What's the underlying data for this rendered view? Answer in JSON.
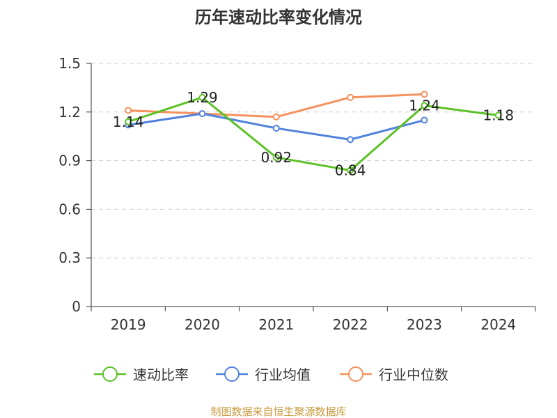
{
  "chart_data": {
    "type": "line",
    "title": "历年速动比率变化情况",
    "categories": [
      "2019",
      "2020",
      "2021",
      "2022",
      "2023",
      "2024"
    ],
    "y_ticks": [
      "0",
      "0.3",
      "0.6",
      "0.9",
      "1.2",
      "1.5"
    ],
    "ylim": [
      0,
      1.5
    ],
    "grid": true,
    "legend_position": "bottom",
    "series": [
      {
        "name": "速动比率",
        "color": "#5cc127",
        "show_labels": true,
        "values": [
          1.14,
          1.29,
          0.92,
          0.84,
          1.24,
          1.18
        ],
        "labels": [
          "1.14",
          "1.29",
          "0.92",
          "0.84",
          "1.24",
          "1.18"
        ]
      },
      {
        "name": "行业均值",
        "color": "#5082dc",
        "show_labels": false,
        "values": [
          1.12,
          1.19,
          1.1,
          1.03,
          1.15,
          null
        ]
      },
      {
        "name": "行业中位数",
        "color": "#f5915c",
        "show_labels": false,
        "values": [
          1.21,
          1.19,
          1.17,
          1.29,
          1.31,
          null
        ]
      }
    ]
  },
  "footer": {
    "source": "制图数据来自恒生聚源数据库"
  }
}
